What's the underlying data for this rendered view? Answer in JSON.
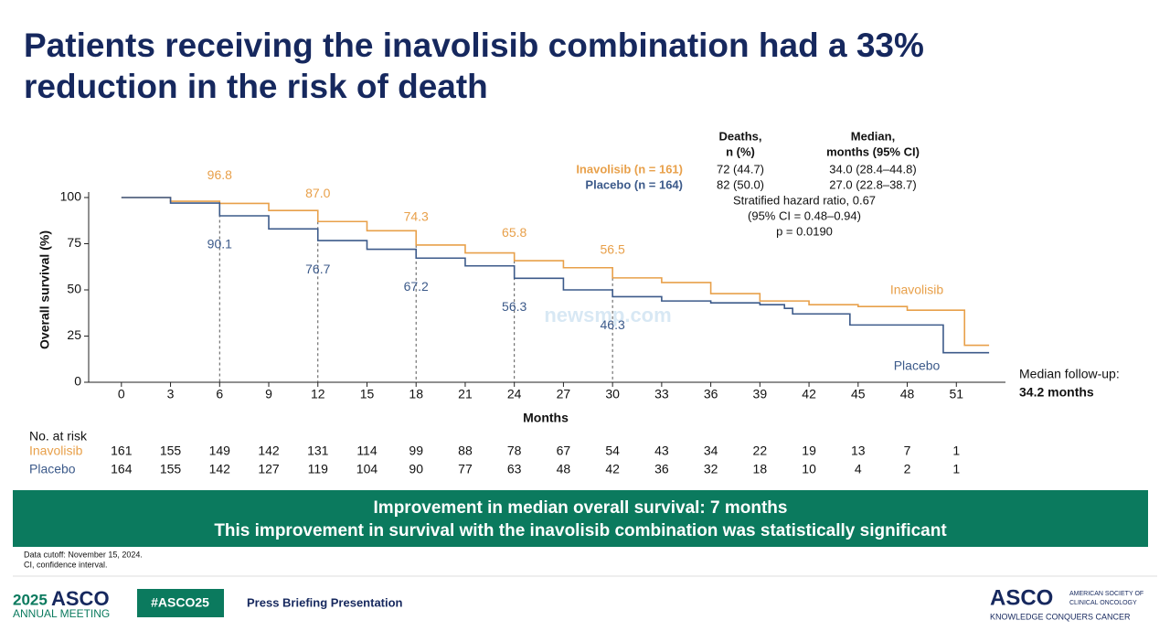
{
  "title": [
    "Patients receiving the inavolisib combination had a 33%",
    "reduction in the risk of death"
  ],
  "chart_data": {
    "type": "line",
    "step": true,
    "xlabel": "Months",
    "ylabel": "Overall survival (%)",
    "xlim": [
      -2,
      54
    ],
    "ylim": [
      0,
      100
    ],
    "xticks": [
      0,
      3,
      6,
      9,
      12,
      15,
      18,
      21,
      24,
      27,
      30,
      33,
      36,
      39,
      42,
      45,
      48,
      51
    ],
    "yticks": [
      0,
      25,
      50,
      75,
      100
    ],
    "landmarks": [
      6,
      12,
      18,
      24,
      30
    ],
    "series": [
      {
        "name": "Inavolisib",
        "color": "#e8a04a",
        "x": [
          0,
          3,
          6,
          9,
          12,
          15,
          18,
          21,
          24,
          27,
          30,
          33,
          36,
          39,
          42,
          45,
          48,
          51,
          51.5,
          53
        ],
        "values": [
          100,
          98,
          96.8,
          93,
          87,
          82,
          74.3,
          70,
          65.8,
          62,
          56.5,
          54,
          48,
          44,
          42,
          41,
          39,
          39,
          20,
          20
        ],
        "landmark_values": [
          96.8,
          87.0,
          74.3,
          65.8,
          56.5
        ],
        "landmark_labels": [
          "96.8",
          "87.0",
          "74.3",
          "65.8",
          "56.5"
        ]
      },
      {
        "name": "Placebo",
        "color": "#3c5a8a",
        "x": [
          0,
          3,
          6,
          9,
          12,
          15,
          18,
          21,
          24,
          27,
          30,
          33,
          36,
          39,
          40.5,
          41,
          44,
          44.5,
          48,
          50.2,
          53
        ],
        "values": [
          100,
          97,
          90.1,
          83,
          76.7,
          72,
          67.2,
          63,
          56.3,
          50,
          46.3,
          44,
          43,
          42,
          40,
          37,
          37,
          31,
          31,
          16,
          16
        ],
        "landmark_values": [
          90.1,
          76.7,
          67.2,
          56.3,
          46.3
        ]
      }
    ]
  },
  "stats": {
    "headers": [
      [
        "Deaths,",
        "n (%)"
      ],
      [
        "Median,",
        "months (95% CI)"
      ]
    ],
    "rows": [
      {
        "label": "Inavolisib (n = 161)",
        "deaths": "72 (44.7)",
        "median": "34.0 (28.4–44.8)"
      },
      {
        "label": "Placebo (n = 164)",
        "deaths": "82 (50.0)",
        "median": "27.0 (22.8–38.7)"
      }
    ],
    "hazard": [
      "Stratified hazard ratio, 0.67",
      "(95% CI = 0.48–0.94)",
      "p = 0.0190"
    ]
  },
  "follow_up": [
    "Median follow-up:",
    "34.2 months"
  ],
  "watermark": "newsmp.com",
  "risk": {
    "title": "No. at risk",
    "rows": [
      {
        "name": "Inavolisib",
        "values": [
          161,
          155,
          149,
          142,
          131,
          114,
          99,
          88,
          78,
          67,
          54,
          43,
          34,
          22,
          19,
          13,
          7,
          1
        ]
      },
      {
        "name": "Placebo",
        "values": [
          164,
          155,
          142,
          127,
          119,
          104,
          90,
          77,
          63,
          48,
          42,
          36,
          32,
          18,
          10,
          4,
          2,
          1
        ]
      }
    ]
  },
  "banner": [
    "Improvement in median overall survival: 7 months",
    "This improvement in survival with the inavolisib combination was statistically significant"
  ],
  "footnotes": [
    "Data cutoff: November 15, 2024.",
    "CI, confidence interval."
  ],
  "footer": {
    "year": "2025",
    "brand": "ASCO",
    "meeting": "ANNUAL MEETING",
    "hashtag": "#ASCO25",
    "caption": "Press Briefing Presentation",
    "logo": "ASCO",
    "society": [
      "AMERICAN SOCIETY OF",
      "CLINICAL ONCOLOGY"
    ],
    "slogan": "KNOWLEDGE CONQUERS CANCER"
  }
}
